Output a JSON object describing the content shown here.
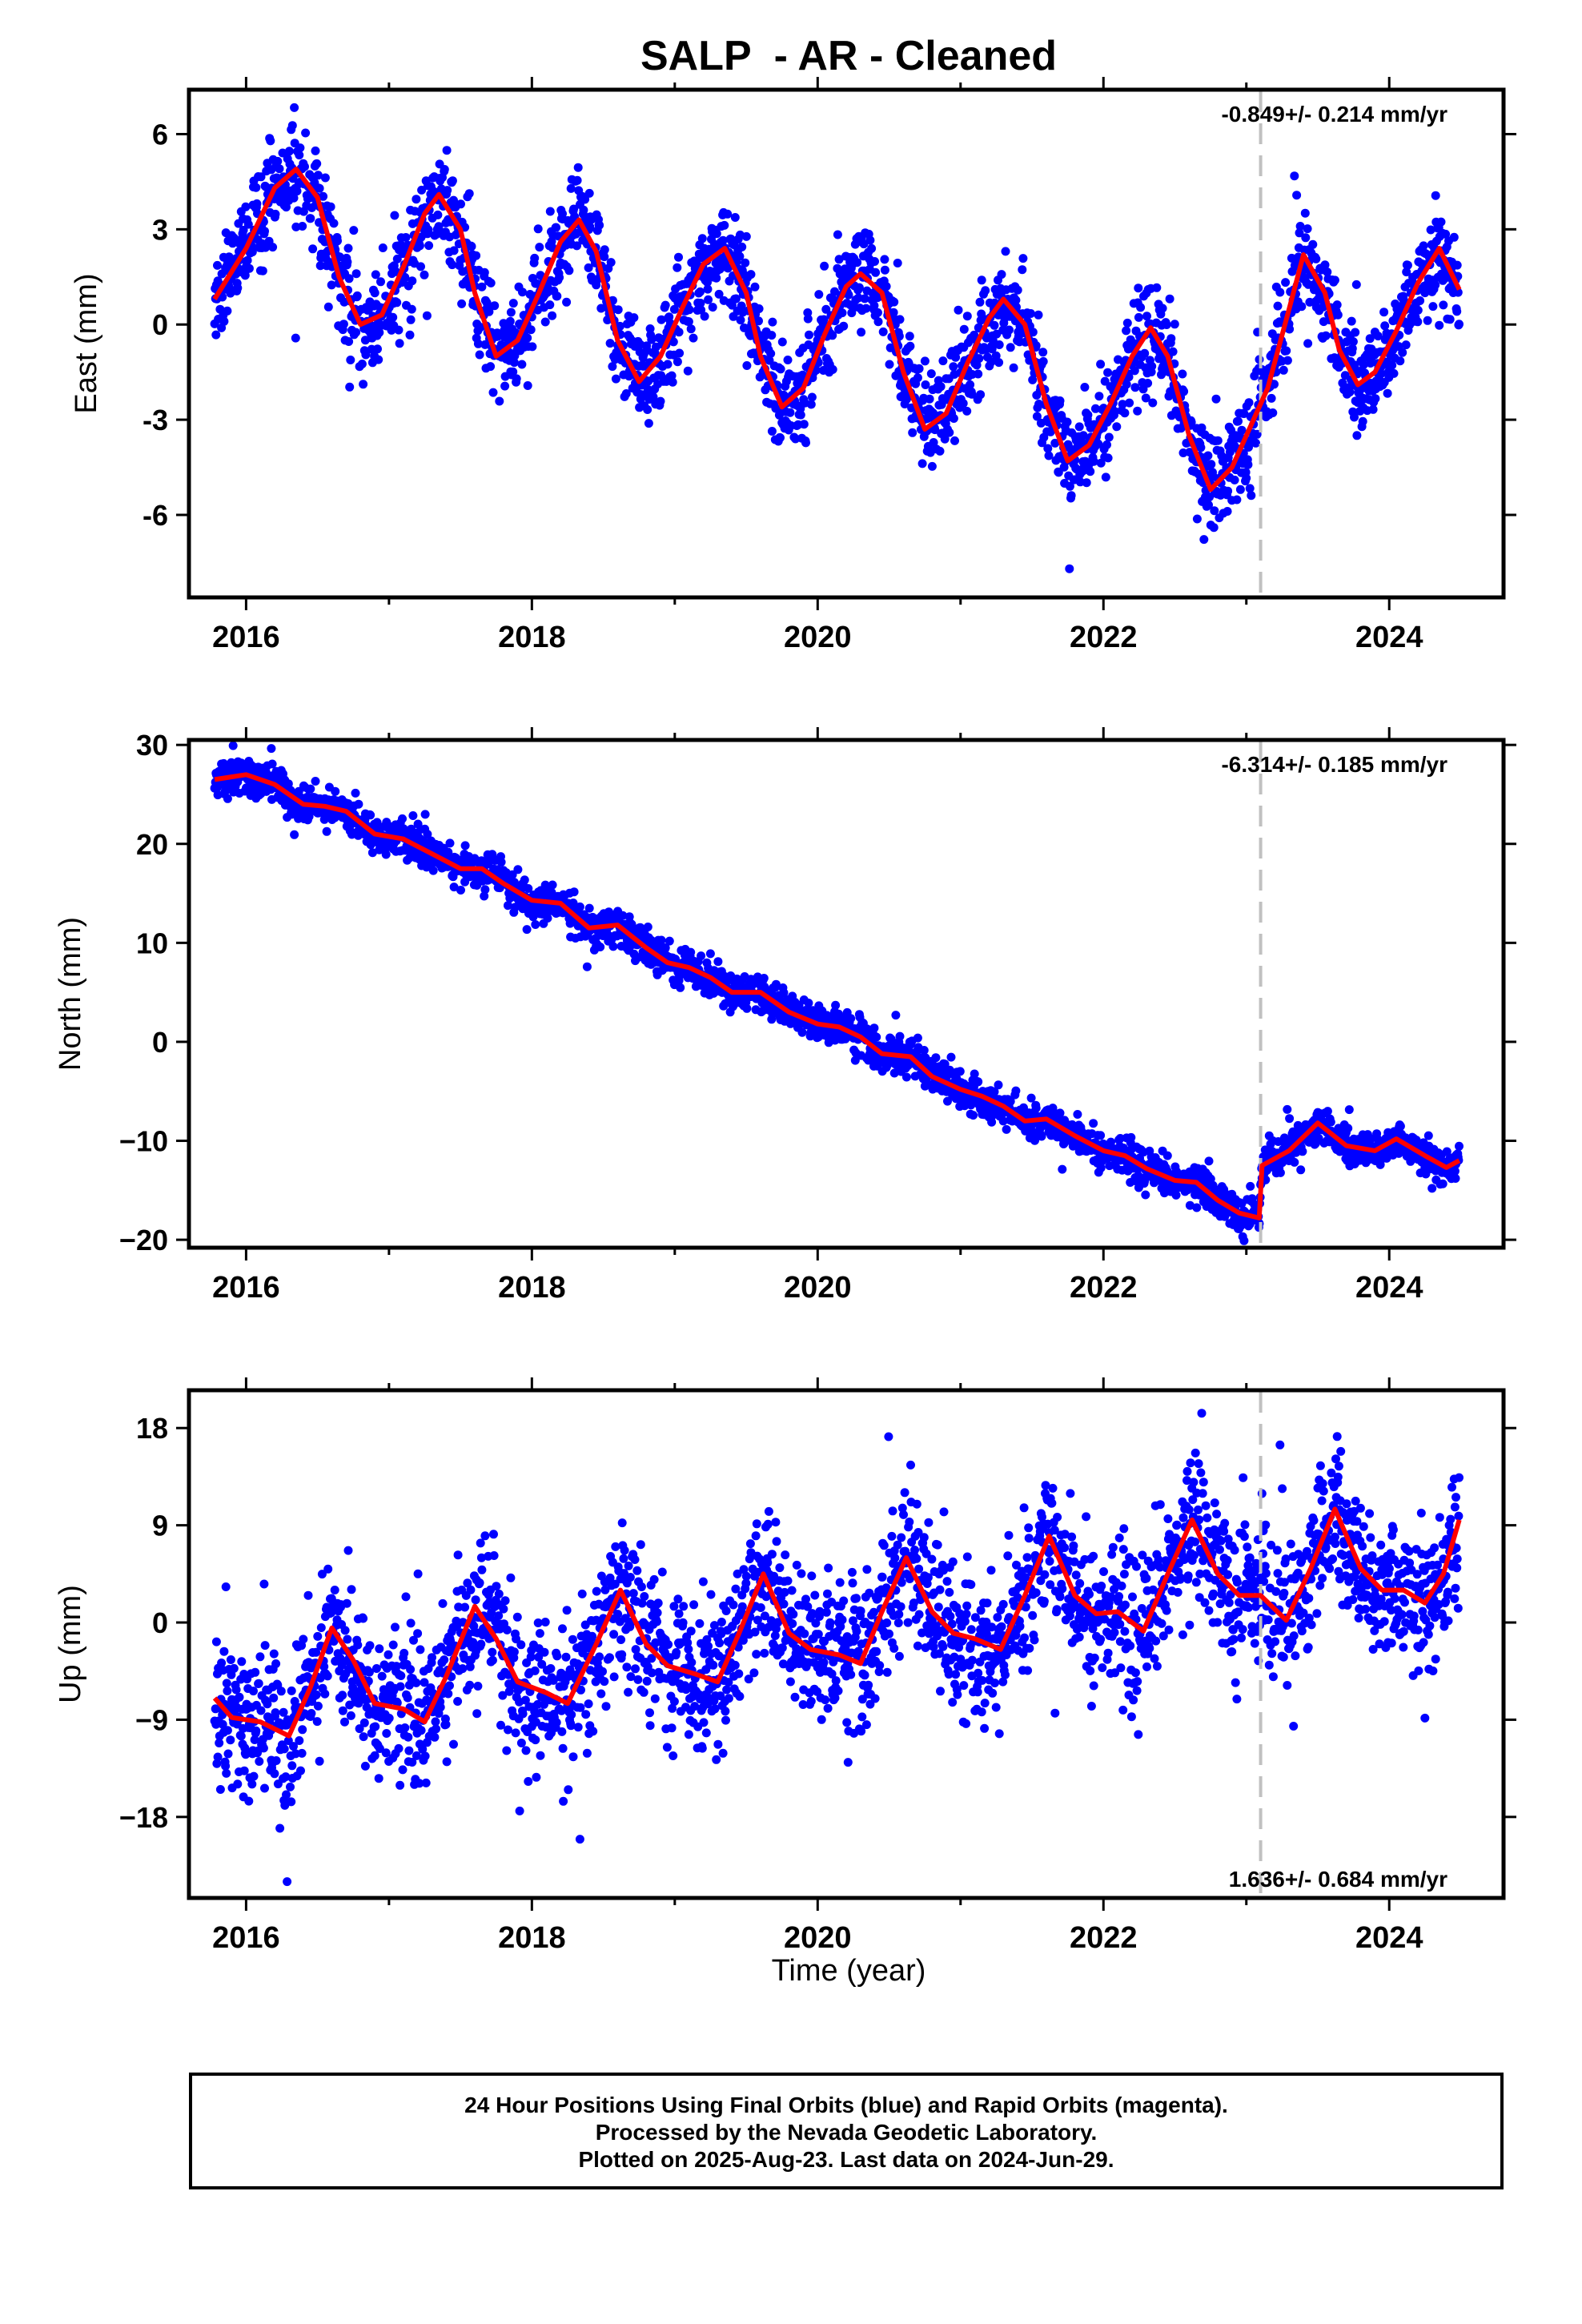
{
  "title": "SALP  - AR - Cleaned",
  "xlabel": "Time (year)",
  "footer": {
    "line1": "24 Hour Positions Using Final Orbits (blue) and Rapid Orbits (magenta).",
    "line2": "Processed by the Nevada Geodetic Laboratory.",
    "line3": "Plotted on 2025-Aug-23. Last data on 2024-Jun-29."
  },
  "colors": {
    "points": "#0000ff",
    "fit": "#ff0000",
    "event_line": "#c0c0c0",
    "frame": "#000000"
  },
  "chart_data": [
    {
      "type": "scatter",
      "component": "east",
      "ylabel": "East (mm)",
      "rate_label": "-0.849+/- 0.214 mm/yr",
      "rate_position": "top-right",
      "xlim": [
        2015.6,
        2024.8
      ],
      "ylim": [
        -8.6,
        7.4
      ],
      "xticks": [
        2016,
        2018,
        2020,
        2022,
        2024
      ],
      "yticks": [
        -6,
        -3,
        0,
        3,
        6
      ],
      "ytick_labels": [
        "-6",
        "-3",
        "0",
        "3",
        "6"
      ],
      "event_line_x": 2023.1,
      "data_start": 2015.78,
      "data_end": 2024.49,
      "fit_curve": [
        [
          2015.78,
          0.8
        ],
        [
          2016.0,
          2.4
        ],
        [
          2016.2,
          4.3
        ],
        [
          2016.35,
          4.9
        ],
        [
          2016.5,
          4.0
        ],
        [
          2016.65,
          1.5
        ],
        [
          2016.8,
          0.0
        ],
        [
          2016.95,
          0.3
        ],
        [
          2017.1,
          1.8
        ],
        [
          2017.25,
          3.5
        ],
        [
          2017.35,
          4.1
        ],
        [
          2017.5,
          3.0
        ],
        [
          2017.6,
          1.0
        ],
        [
          2017.75,
          -1.0
        ],
        [
          2017.9,
          -0.5
        ],
        [
          2018.05,
          1.0
        ],
        [
          2018.2,
          2.6
        ],
        [
          2018.33,
          3.3
        ],
        [
          2018.45,
          2.3
        ],
        [
          2018.6,
          -0.5
        ],
        [
          2018.75,
          -1.8
        ],
        [
          2018.9,
          -1.0
        ],
        [
          2019.05,
          0.5
        ],
        [
          2019.2,
          1.9
        ],
        [
          2019.35,
          2.4
        ],
        [
          2019.5,
          1.0
        ],
        [
          2019.6,
          -1.0
        ],
        [
          2019.75,
          -2.6
        ],
        [
          2019.9,
          -2.0
        ],
        [
          2020.05,
          -0.3
        ],
        [
          2020.2,
          1.2
        ],
        [
          2020.3,
          1.6
        ],
        [
          2020.45,
          1.0
        ],
        [
          2020.6,
          -1.5
        ],
        [
          2020.75,
          -3.3
        ],
        [
          2020.9,
          -2.8
        ],
        [
          2021.05,
          -1.2
        ],
        [
          2021.2,
          0.2
        ],
        [
          2021.3,
          0.8
        ],
        [
          2021.45,
          0.0
        ],
        [
          2021.6,
          -2.5
        ],
        [
          2021.75,
          -4.3
        ],
        [
          2021.9,
          -3.8
        ],
        [
          2022.05,
          -2.5
        ],
        [
          2022.2,
          -1.0
        ],
        [
          2022.33,
          -0.1
        ],
        [
          2022.45,
          -1.0
        ],
        [
          2022.6,
          -3.5
        ],
        [
          2022.75,
          -5.2
        ],
        [
          2022.9,
          -4.5
        ],
        [
          2023.05,
          -3.0
        ],
        [
          2023.15,
          -2.0
        ],
        [
          2023.3,
          0.5
        ],
        [
          2023.4,
          2.2
        ],
        [
          2023.55,
          1.0
        ],
        [
          2023.65,
          -0.8
        ],
        [
          2023.78,
          -1.9
        ],
        [
          2023.9,
          -1.5
        ],
        [
          2024.05,
          -0.2
        ],
        [
          2024.2,
          1.3
        ],
        [
          2024.35,
          2.4
        ],
        [
          2024.49,
          1.1
        ]
      ],
      "scatter_sigma": 0.75
    },
    {
      "type": "scatter",
      "component": "north",
      "ylabel": "North (mm)",
      "rate_label": "-6.314+/- 0.185 mm/yr",
      "rate_position": "top-right",
      "xlim": [
        2015.6,
        2024.8
      ],
      "ylim": [
        -20.8,
        30.5
      ],
      "xticks": [
        2016,
        2018,
        2020,
        2022,
        2024
      ],
      "yticks": [
        -20,
        -10,
        0,
        10,
        20,
        30
      ],
      "ytick_labels": [
        "−20",
        "−10",
        "0",
        "10",
        "20",
        "30"
      ],
      "event_line_x": 2023.1,
      "data_start": 2015.78,
      "data_end": 2024.49,
      "fit_curve": [
        [
          2015.78,
          26.5
        ],
        [
          2016.0,
          27.0
        ],
        [
          2016.2,
          26.0
        ],
        [
          2016.4,
          24.0
        ],
        [
          2016.55,
          23.8
        ],
        [
          2016.7,
          23.3
        ],
        [
          2016.9,
          21.0
        ],
        [
          2017.1,
          20.5
        ],
        [
          2017.3,
          19.0
        ],
        [
          2017.5,
          17.5
        ],
        [
          2017.65,
          17.5
        ],
        [
          2017.8,
          16.0
        ],
        [
          2018.0,
          14.3
        ],
        [
          2018.2,
          14.0
        ],
        [
          2018.4,
          11.5
        ],
        [
          2018.6,
          11.8
        ],
        [
          2018.8,
          9.5
        ],
        [
          2018.95,
          8.0
        ],
        [
          2019.1,
          7.5
        ],
        [
          2019.25,
          6.5
        ],
        [
          2019.4,
          5.0
        ],
        [
          2019.6,
          5.0
        ],
        [
          2019.8,
          3.0
        ],
        [
          2020.0,
          1.8
        ],
        [
          2020.15,
          1.5
        ],
        [
          2020.3,
          0.5
        ],
        [
          2020.45,
          -1.2
        ],
        [
          2020.65,
          -1.5
        ],
        [
          2020.8,
          -3.5
        ],
        [
          2021.0,
          -4.8
        ],
        [
          2021.15,
          -5.5
        ],
        [
          2021.3,
          -6.5
        ],
        [
          2021.45,
          -8.0
        ],
        [
          2021.6,
          -7.8
        ],
        [
          2021.8,
          -9.5
        ],
        [
          2022.0,
          -11.0
        ],
        [
          2022.15,
          -11.5
        ],
        [
          2022.3,
          -12.8
        ],
        [
          2022.5,
          -14.0
        ],
        [
          2022.65,
          -14.2
        ],
        [
          2022.8,
          -16.0
        ],
        [
          2022.95,
          -17.3
        ],
        [
          2023.09,
          -17.8
        ],
        [
          2023.11,
          -12.5
        ],
        [
          2023.3,
          -11.0
        ],
        [
          2023.5,
          -8.2
        ],
        [
          2023.7,
          -10.5
        ],
        [
          2023.9,
          -11.0
        ],
        [
          2024.05,
          -9.8
        ],
        [
          2024.25,
          -11.5
        ],
        [
          2024.4,
          -12.7
        ],
        [
          2024.49,
          -12.0
        ]
      ],
      "scatter_sigma": 0.9
    },
    {
      "type": "scatter",
      "component": "up",
      "ylabel": "Up (mm)",
      "rate_label": "1.636+/- 0.684 mm/yr",
      "rate_position": "bottom-right",
      "xlim": [
        2015.6,
        2024.8
      ],
      "ylim": [
        -25.5,
        21.5
      ],
      "xticks": [
        2016,
        2018,
        2020,
        2022,
        2024
      ],
      "yticks": [
        -18,
        -9,
        0,
        9,
        18
      ],
      "ytick_labels": [
        "−18",
        "−9",
        "0",
        "9",
        "18"
      ],
      "event_line_x": 2023.1,
      "data_start": 2015.78,
      "data_end": 2024.49,
      "fit_curve": [
        [
          2015.78,
          -7.0
        ],
        [
          2015.9,
          -8.8
        ],
        [
          2016.1,
          -9.2
        ],
        [
          2016.3,
          -10.5
        ],
        [
          2016.45,
          -6.0
        ],
        [
          2016.6,
          -0.5
        ],
        [
          2016.75,
          -3.5
        ],
        [
          2016.9,
          -7.5
        ],
        [
          2017.1,
          -8.0
        ],
        [
          2017.25,
          -9.2
        ],
        [
          2017.4,
          -5.0
        ],
        [
          2017.6,
          1.5
        ],
        [
          2017.75,
          -1.5
        ],
        [
          2017.9,
          -5.5
        ],
        [
          2018.1,
          -6.5
        ],
        [
          2018.25,
          -7.5
        ],
        [
          2018.45,
          -2.0
        ],
        [
          2018.62,
          3.0
        ],
        [
          2018.8,
          -2.0
        ],
        [
          2018.95,
          -4.0
        ],
        [
          2019.15,
          -4.8
        ],
        [
          2019.3,
          -5.5
        ],
        [
          2019.45,
          -1.0
        ],
        [
          2019.62,
          4.5
        ],
        [
          2019.8,
          -1.0
        ],
        [
          2019.95,
          -2.5
        ],
        [
          2020.15,
          -3.0
        ],
        [
          2020.3,
          -3.8
        ],
        [
          2020.45,
          1.0
        ],
        [
          2020.62,
          6.0
        ],
        [
          2020.8,
          1.0
        ],
        [
          2020.95,
          -1.0
        ],
        [
          2021.1,
          -1.5
        ],
        [
          2021.28,
          -2.5
        ],
        [
          2021.45,
          2.5
        ],
        [
          2021.62,
          8.0
        ],
        [
          2021.8,
          2.5
        ],
        [
          2021.95,
          0.8
        ],
        [
          2022.1,
          1.0
        ],
        [
          2022.28,
          -0.8
        ],
        [
          2022.45,
          4.5
        ],
        [
          2022.62,
          9.5
        ],
        [
          2022.8,
          4.5
        ],
        [
          2022.95,
          2.5
        ],
        [
          2023.1,
          2.5
        ],
        [
          2023.28,
          0.2
        ],
        [
          2023.45,
          5.0
        ],
        [
          2023.62,
          10.5
        ],
        [
          2023.8,
          5.0
        ],
        [
          2023.95,
          3.0
        ],
        [
          2024.1,
          3.0
        ],
        [
          2024.25,
          1.8
        ],
        [
          2024.38,
          4.5
        ],
        [
          2024.49,
          9.5
        ]
      ],
      "scatter_sigma": 3.3
    }
  ]
}
